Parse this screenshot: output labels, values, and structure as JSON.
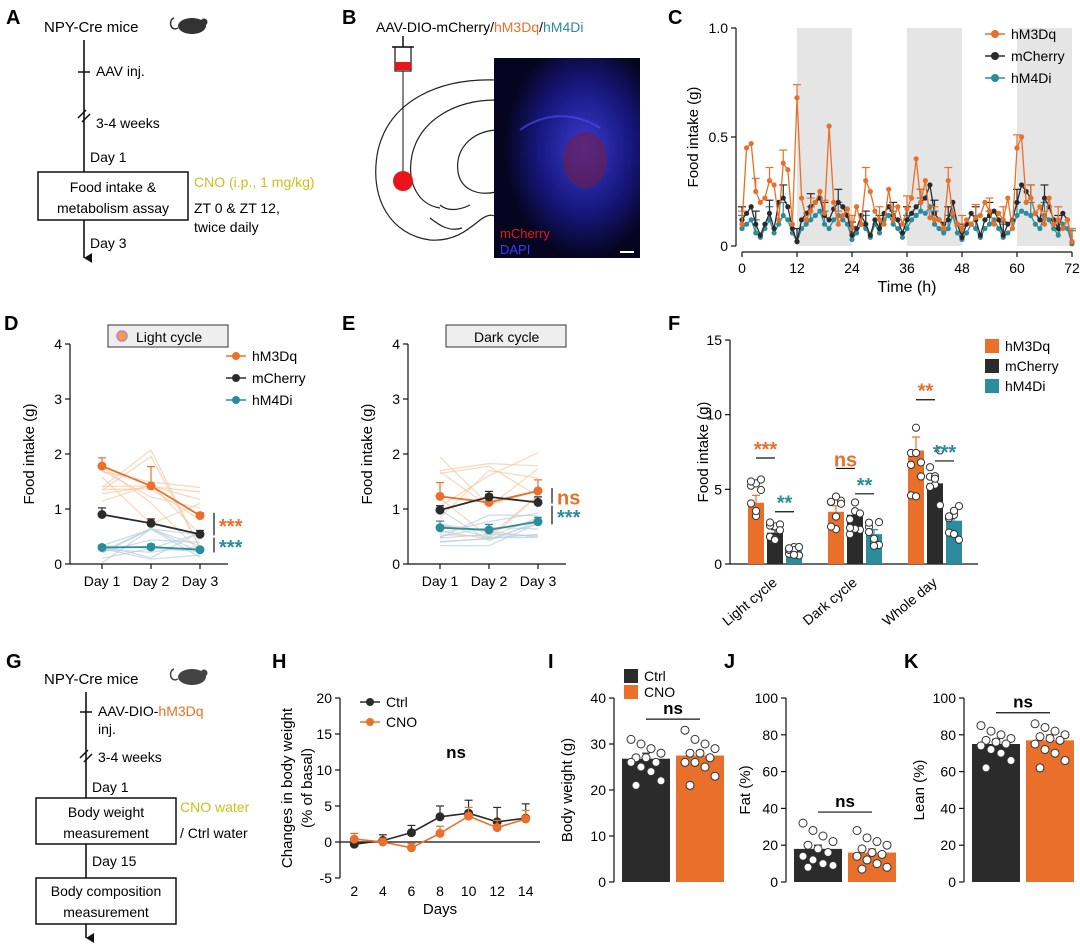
{
  "colors": {
    "orange": "#E8702A",
    "black": "#2b2b2b",
    "teal": "#2A8C9C",
    "yellow": "#C9C21A",
    "red": "#e8161b",
    "grey_band": "#e5e5e5",
    "light_orange": "#f5c9a6",
    "light_teal": "#b8cfe0"
  },
  "icons": [
    "mouse-icon",
    "sun-icon",
    "moon-icon",
    "syringe-icon"
  ],
  "panels": {
    "A": {
      "letter": "A",
      "title": "NPY-Cre mice",
      "step1": "AAV inj.",
      "step2": "3-4 weeks",
      "day_start": "Day 1",
      "box_line1": "Food intake &",
      "box_line2": "metabolism assay",
      "cno": "CNO (i.p., 1 mg/kg)",
      "zt_line1": "ZT 0 & ZT 12,",
      "zt_line2": "twice daily",
      "day_end": "Day 3"
    },
    "B": {
      "letter": "B",
      "title_a": "AAV-DIO-mCherry/",
      "title_b": "hM3Dq",
      "title_c": "/",
      "title_d": "hM4Di",
      "label_mcherry": "mCherry",
      "label_dapi": "DAPI"
    },
    "G": {
      "letter": "G",
      "title": "NPY-Cre mice",
      "step1a": "AAV-DIO-",
      "step1b": "hM3Dq",
      "step1c": "inj.",
      "step2": "3-4 weeks",
      "day_start": "Day 1",
      "box1_line1": "Body weight",
      "box1_line2": "measurement",
      "cno_water": "CNO water",
      "ctrl_water": "/ Ctrl water",
      "day_mid": "Day 15",
      "box2_line1": "Body composition",
      "box2_line2": "measurement"
    }
  },
  "chart_data": [
    {
      "id": "C",
      "letter": "C",
      "type": "line",
      "ylabel": "Food intake (g)",
      "xlabel": "Time (h)",
      "xlim": [
        0,
        72
      ],
      "ylim": [
        0,
        1.0
      ],
      "xticks": [
        "0",
        "12",
        "24",
        "36",
        "48",
        "60",
        "72"
      ],
      "yticks": [
        "0",
        "0.5",
        "1.0"
      ],
      "dark_bands": [
        [
          12,
          24
        ],
        [
          36,
          48
        ],
        [
          60,
          72
        ]
      ],
      "legend": [
        "hM3Dq",
        "mCherry",
        "hM4Di"
      ],
      "x": [
        0,
        1,
        2,
        3,
        4,
        5,
        6,
        7,
        8,
        9,
        10,
        11,
        12,
        13,
        14,
        15,
        16,
        17,
        18,
        19,
        20,
        21,
        22,
        23,
        24,
        25,
        26,
        27,
        28,
        29,
        30,
        31,
        32,
        33,
        34,
        35,
        36,
        37,
        38,
        39,
        40,
        41,
        42,
        43,
        44,
        45,
        46,
        47,
        48,
        49,
        50,
        51,
        52,
        53,
        54,
        55,
        56,
        57,
        58,
        59,
        60,
        61,
        62,
        63,
        64,
        65,
        66,
        67,
        68,
        69,
        70,
        71,
        72
      ],
      "series": [
        {
          "name": "hM3Dq",
          "color": "orange",
          "values": [
            0.1,
            0.45,
            0.47,
            0.25,
            0.2,
            0.22,
            0.3,
            0.28,
            0.12,
            0.38,
            0.35,
            0.1,
            0.68,
            0.22,
            0.12,
            0.16,
            0.2,
            0.25,
            0.15,
            0.55,
            0.2,
            0.1,
            0.14,
            0.17,
            0.08,
            0.18,
            0.1,
            0.3,
            0.25,
            0.16,
            0.12,
            0.1,
            0.26,
            0.12,
            0.18,
            0.1,
            0.17,
            0.22,
            0.4,
            0.2,
            0.3,
            0.13,
            0.12,
            0.12,
            0.08,
            0.3,
            0.15,
            0.1,
            0.08,
            0.12,
            0.1,
            0.13,
            0.14,
            0.2,
            0.16,
            0.1,
            0.15,
            0.12,
            0.22,
            0.08,
            0.45,
            0.5,
            0.2,
            0.22,
            0.15,
            0.18,
            0.1,
            0.22,
            0.1,
            0.12,
            0.08,
            0.12,
            0.02
          ]
        },
        {
          "name": "mCherry",
          "color": "black",
          "values": [
            0.12,
            0.15,
            0.18,
            0.1,
            0.05,
            0.1,
            0.15,
            0.08,
            0.2,
            0.22,
            0.18,
            0.08,
            0.02,
            0.12,
            0.15,
            0.18,
            0.2,
            0.22,
            0.14,
            0.12,
            0.17,
            0.2,
            0.18,
            0.14,
            0.05,
            0.08,
            0.14,
            0.1,
            0.05,
            0.12,
            0.08,
            0.15,
            0.18,
            0.14,
            0.12,
            0.06,
            0.12,
            0.15,
            0.18,
            0.2,
            0.22,
            0.28,
            0.15,
            0.12,
            0.1,
            0.12,
            0.2,
            0.1,
            0.04,
            0.1,
            0.15,
            0.12,
            0.05,
            0.12,
            0.14,
            0.16,
            0.12,
            0.05,
            0.1,
            0.12,
            0.2,
            0.28,
            0.25,
            0.22,
            0.15,
            0.12,
            0.22,
            0.18,
            0.12,
            0.08,
            0.15,
            0.12,
            0.02
          ]
        },
        {
          "name": "hM4Di",
          "color": "teal",
          "values": [
            0.08,
            0.1,
            0.12,
            0.06,
            0.04,
            0.08,
            0.12,
            0.06,
            0.1,
            0.14,
            0.12,
            0.06,
            0.02,
            0.08,
            0.1,
            0.12,
            0.14,
            0.16,
            0.1,
            0.08,
            0.12,
            0.14,
            0.12,
            0.1,
            0.03,
            0.06,
            0.1,
            0.08,
            0.04,
            0.1,
            0.06,
            0.12,
            0.14,
            0.1,
            0.08,
            0.04,
            0.08,
            0.12,
            0.14,
            0.16,
            0.15,
            0.18,
            0.1,
            0.08,
            0.06,
            0.08,
            0.14,
            0.06,
            0.03,
            0.06,
            0.1,
            0.08,
            0.04,
            0.08,
            0.1,
            0.12,
            0.08,
            0.04,
            0.06,
            0.08,
            0.14,
            0.16,
            0.15,
            0.14,
            0.1,
            0.08,
            0.14,
            0.12,
            0.08,
            0.05,
            0.1,
            0.08,
            0.01
          ]
        }
      ]
    },
    {
      "id": "D",
      "letter": "D",
      "type": "line",
      "tag": "Light cycle",
      "ylabel": "Food intake (g)",
      "categories": [
        "Day 1",
        "Day 2",
        "Day 3"
      ],
      "ylim": [
        0,
        4
      ],
      "yticks": [
        "0",
        "1",
        "2",
        "3",
        "4"
      ],
      "legend": [
        "hM3Dq",
        "mCherry",
        "hM4Di"
      ],
      "series": [
        {
          "name": "hM3Dq",
          "color": "orange",
          "values": [
            1.78,
            1.42,
            0.88
          ],
          "err": [
            0.15,
            0.35,
            0.05
          ]
        },
        {
          "name": "mCherry",
          "color": "black",
          "values": [
            0.9,
            0.74,
            0.54
          ],
          "err": [
            0.12,
            0.08,
            0.07
          ]
        },
        {
          "name": "hM4Di",
          "color": "teal",
          "values": [
            0.3,
            0.31,
            0.26
          ],
          "err": [
            0.04,
            0.05,
            0.03
          ]
        }
      ],
      "sig": [
        {
          "text": "***",
          "color": "orange"
        },
        {
          "text": "***",
          "color": "teal"
        }
      ]
    },
    {
      "id": "E",
      "letter": "E",
      "type": "line",
      "tag": "Dark cycle",
      "ylabel": "Food intake (g)",
      "categories": [
        "Day 1",
        "Day 2",
        "Day 3"
      ],
      "ylim": [
        0,
        4
      ],
      "yticks": [
        "0",
        "1",
        "2",
        "3",
        "4"
      ],
      "series": [
        {
          "name": "hM3Dq",
          "color": "orange",
          "values": [
            1.23,
            1.12,
            1.33
          ],
          "err": [
            0.25,
            0.15,
            0.2
          ]
        },
        {
          "name": "mCherry",
          "color": "black",
          "values": [
            0.98,
            1.22,
            1.12
          ],
          "err": [
            0.08,
            0.1,
            0.1
          ]
        },
        {
          "name": "hM4Di",
          "color": "teal",
          "values": [
            0.66,
            0.62,
            0.77
          ],
          "err": [
            0.12,
            0.1,
            0.08
          ]
        }
      ],
      "sig": [
        {
          "text": "ns",
          "color": "orange"
        },
        {
          "text": "***",
          "color": "teal"
        }
      ]
    },
    {
      "id": "F",
      "letter": "F",
      "type": "bar",
      "ylabel": "Food intake (g)",
      "categories": [
        "Light cycle",
        "Dark cycle",
        "Whole day"
      ],
      "ylim": [
        0,
        15
      ],
      "yticks": [
        "0",
        "5",
        "10",
        "15"
      ],
      "legend": [
        "hM3Dq",
        "mCherry",
        "hM4Di"
      ],
      "series": [
        {
          "name": "hM3Dq",
          "color": "orange",
          "values": [
            4.1,
            3.5,
            7.6
          ],
          "err": [
            0.5,
            0.4,
            0.9
          ]
        },
        {
          "name": "mCherry",
          "color": "black",
          "values": [
            2.1,
            3.3,
            5.4
          ],
          "err": [
            0.2,
            0.2,
            0.3
          ]
        },
        {
          "name": "hM4Di",
          "color": "teal",
          "values": [
            0.9,
            2.0,
            2.9
          ],
          "err": [
            0.15,
            0.3,
            0.4
          ]
        }
      ],
      "sig": [
        {
          "text": "***",
          "color": "orange",
          "group": 0,
          "pair": "a"
        },
        {
          "text": "**",
          "color": "teal",
          "group": 0,
          "pair": "b"
        },
        {
          "text": "ns",
          "color": "orange",
          "group": 1,
          "pair": "a"
        },
        {
          "text": "**",
          "color": "teal",
          "group": 1,
          "pair": "b"
        },
        {
          "text": "**",
          "color": "orange",
          "group": 2,
          "pair": "a"
        },
        {
          "text": "***",
          "color": "teal",
          "group": 2,
          "pair": "b"
        }
      ]
    },
    {
      "id": "H",
      "letter": "H",
      "type": "line",
      "ylabel_line1": "Changes in body weight",
      "ylabel_line2": "(% of basal)",
      "xlabel": "Days",
      "x": [
        2,
        4,
        6,
        8,
        10,
        12,
        14
      ],
      "xticks": [
        "2",
        "4",
        "6",
        "8",
        "10",
        "12",
        "14"
      ],
      "xlim": [
        1,
        15
      ],
      "ylim": [
        -5,
        20
      ],
      "yticks": [
        "-5",
        "0",
        "5",
        "10",
        "15",
        "20"
      ],
      "legend": [
        "Ctrl",
        "CNO"
      ],
      "series": [
        {
          "name": "Ctrl",
          "color": "black",
          "values": [
            -0.3,
            0.2,
            1.3,
            3.5,
            4.0,
            2.8,
            3.3
          ],
          "err": [
            0.6,
            0.8,
            1.0,
            1.5,
            1.8,
            2.0,
            2.0
          ]
        },
        {
          "name": "CNO",
          "color": "orange",
          "values": [
            0.4,
            0.0,
            -0.8,
            1.2,
            3.6,
            2.0,
            3.2
          ],
          "err": [
            0.8,
            0.5,
            0.6,
            1.0,
            1.2,
            1.0,
            1.2
          ]
        }
      ],
      "sig": "ns"
    },
    {
      "id": "I",
      "letter": "I",
      "type": "bar",
      "ylabel": "Body weight (g)",
      "ylim": [
        0,
        40
      ],
      "yticks": [
        "0",
        "10",
        "20",
        "30",
        "40"
      ],
      "legend": [
        "Ctrl",
        "CNO"
      ],
      "series": [
        {
          "name": "Ctrl",
          "color": "black",
          "values": [
            26.8
          ],
          "err": [
            1.2
          ],
          "points": [
            31,
            30,
            29,
            28,
            27,
            27,
            26,
            26,
            25,
            24,
            22,
            21
          ]
        },
        {
          "name": "CNO",
          "color": "orange",
          "values": [
            27.5
          ],
          "err": [
            1.1
          ],
          "points": [
            33,
            31,
            30,
            29,
            28,
            28,
            27,
            26,
            26,
            25,
            23,
            21
          ]
        }
      ],
      "sig": "ns"
    },
    {
      "id": "J",
      "letter": "J",
      "type": "bar",
      "ylabel": "Fat (%)",
      "ylim": [
        0,
        100
      ],
      "yticks": [
        "0",
        "20",
        "40",
        "60",
        "80",
        "100"
      ],
      "series": [
        {
          "name": "Ctrl",
          "color": "black",
          "values": [
            18
          ],
          "err": [
            2
          ],
          "points": [
            32,
            28,
            25,
            22,
            20,
            18,
            16,
            14,
            12,
            10,
            9,
            8
          ]
        },
        {
          "name": "CNO",
          "color": "orange",
          "values": [
            16
          ],
          "err": [
            2
          ],
          "points": [
            28,
            24,
            22,
            20,
            18,
            16,
            15,
            14,
            12,
            10,
            8,
            7
          ]
        }
      ],
      "sig": "ns"
    },
    {
      "id": "K",
      "letter": "K",
      "type": "bar",
      "ylabel": "Lean (%)",
      "ylim": [
        0,
        100
      ],
      "yticks": [
        "0",
        "20",
        "40",
        "60",
        "80",
        "100"
      ],
      "series": [
        {
          "name": "Ctrl",
          "color": "black",
          "values": [
            75
          ],
          "err": [
            2.5
          ],
          "points": [
            85,
            82,
            80,
            78,
            77,
            76,
            75,
            74,
            72,
            70,
            66,
            62
          ]
        },
        {
          "name": "CNO",
          "color": "orange",
          "values": [
            77
          ],
          "err": [
            3
          ],
          "points": [
            86,
            84,
            82,
            80,
            79,
            78,
            77,
            75,
            72,
            70,
            66,
            62
          ]
        }
      ],
      "sig": "ns"
    }
  ]
}
